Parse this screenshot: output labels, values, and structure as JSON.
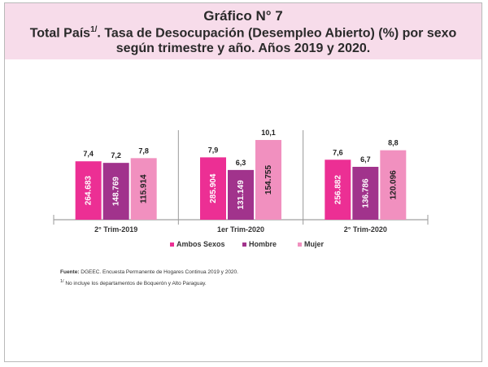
{
  "header": {
    "title": "Gráfico N° 7",
    "subtitle_part1": "Total País",
    "subtitle_sup": "1/",
    "subtitle_part2": ". Tasa de Desocupación (Desempleo Abierto) (%) por sexo",
    "subtitle_line2": "según trimestre y año. Años 2019 y 2020."
  },
  "chart_data": {
    "type": "bar",
    "categories": [
      "2° Trim-2019",
      "1er Trim-2020",
      "2° Trim-2020"
    ],
    "series": [
      {
        "name": "Ambos Sexos",
        "color": "#ec2f94",
        "values": [
          7.4,
          7.9,
          7.6
        ],
        "value_labels": [
          "7,4",
          "7,9",
          "7,6"
        ],
        "counts": [
          "264.683",
          "285.904",
          "256.882"
        ]
      },
      {
        "name": "Hombre",
        "color": "#a1338c",
        "values": [
          7.2,
          6.3,
          6.7
        ],
        "value_labels": [
          "7,2",
          "6,3",
          "6,7"
        ],
        "counts": [
          "148.769",
          "131.149",
          "136.786"
        ]
      },
      {
        "name": "Mujer",
        "color": "#f190bf",
        "values": [
          7.8,
          10.1,
          8.8
        ],
        "value_labels": [
          "7,8",
          "10,1",
          "8,8"
        ],
        "counts": [
          "115.914",
          "154.755",
          "120.096"
        ]
      }
    ],
    "ylim": [
      0,
      12
    ],
    "legend": "bottom",
    "grid": false
  },
  "footer": {
    "source_label": "Fuente:",
    "source_text": " DGEEC. Encuesta Permanente de Hogares Continua 2019 y 2020.",
    "note_sup": "1/",
    "note_text": " No incluye los departamentos de Boquerón y Alto Paraguay."
  }
}
